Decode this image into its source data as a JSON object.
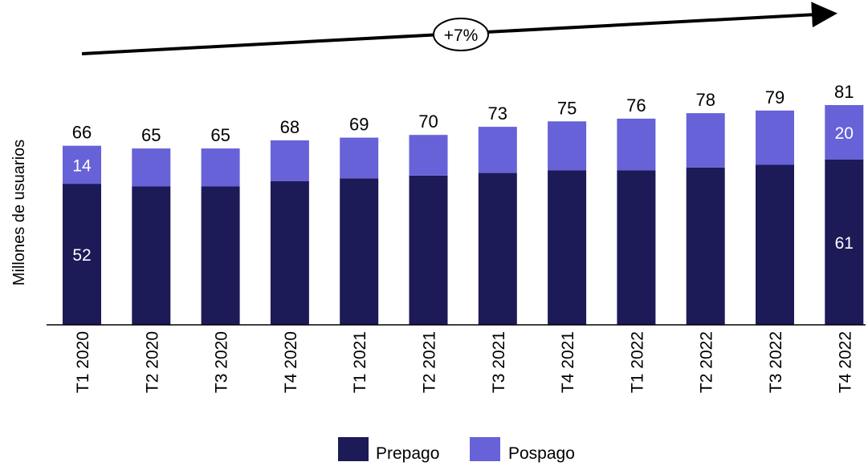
{
  "chart_data": {
    "type": "bar",
    "stacked": true,
    "categories": [
      "T1 2020",
      "T2 2020",
      "T3 2020",
      "T4 2020",
      "T1 2021",
      "T2 2021",
      "T3 2021",
      "T4 2021",
      "T1 2022",
      "T2 2022",
      "T3 2022",
      "T4 2022"
    ],
    "series": [
      {
        "name": "Prepago",
        "color": "#1c1a57",
        "values": [
          52,
          51,
          51,
          53,
          54,
          55,
          56,
          57,
          57,
          58,
          59,
          61
        ],
        "shown_labels": {
          "0": "52",
          "11": "61"
        }
      },
      {
        "name": "Pospago",
        "color": "#6762d8",
        "values": [
          14,
          14,
          14,
          15,
          15,
          15,
          17,
          18,
          19,
          20,
          20,
          20
        ],
        "shown_labels": {
          "0": "14",
          "11": "20"
        }
      }
    ],
    "totals": [
      "66",
      "65",
      "65",
      "68",
      "69",
      "70",
      "73",
      "75",
      "76",
      "78",
      "79",
      "81"
    ],
    "ylabel": "Millones de usuarios",
    "ylim": [
      0,
      81
    ],
    "grid": false,
    "legend_position": "bottom-center",
    "annotation": {
      "text": "+7%",
      "shape": "ellipse-on-arrow"
    }
  }
}
